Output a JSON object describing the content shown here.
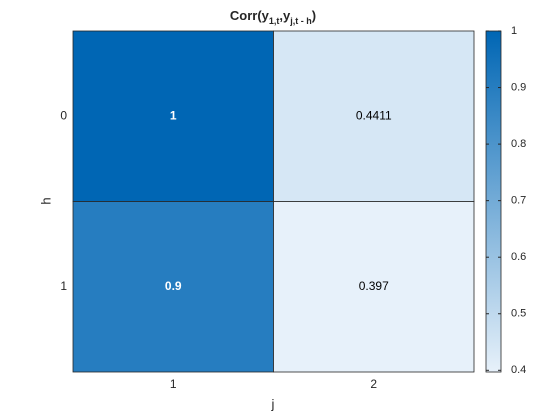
{
  "chart_data": {
    "type": "heatmap",
    "title": [
      "Corr(y",
      "1,t",
      ",y",
      "j,t - h",
      ")"
    ],
    "xlabel": "j",
    "ylabel": "h",
    "x_categories": [
      "1",
      "2"
    ],
    "y_categories": [
      "0",
      "1"
    ],
    "values": [
      [
        1,
        0.4411
      ],
      [
        0.9,
        0.397
      ]
    ],
    "colormap": [
      "#e7f1fa",
      "#0066b4"
    ],
    "clim": [
      0.397,
      1
    ],
    "cticks": [
      0.4,
      0.5,
      0.6,
      0.7,
      0.8,
      0.9,
      1
    ]
  }
}
